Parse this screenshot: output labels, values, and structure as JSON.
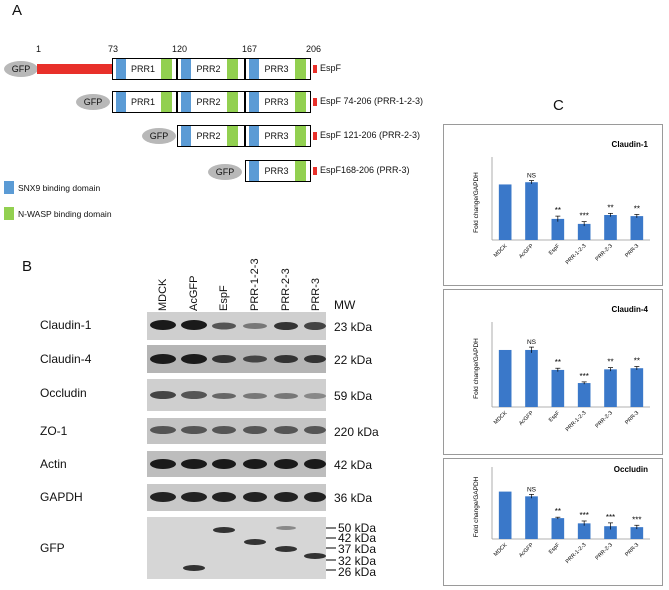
{
  "panels": {
    "a": "A",
    "b": "B",
    "c": "C"
  },
  "panel_a": {
    "positions": [
      "1",
      "73",
      "120",
      "167",
      "206"
    ],
    "gfp_label": "GFP",
    "prr_labels": [
      "PRR1",
      "PRR2",
      "PRR3"
    ],
    "constructs": [
      "EspF",
      "EspF 74-206 (PRR-1-2-3)",
      "EspF 121-206 (PRR-2-3)",
      "EspF168-206 (PRR-3)"
    ],
    "legend": [
      {
        "label": "SNX9 binding domain",
        "color": "#5b9bd5"
      },
      {
        "label": "N-WASP binding domain",
        "color": "#92d050"
      }
    ],
    "colors": {
      "linker": "#e8302a",
      "gfp": "#b8b8b8"
    }
  },
  "panel_b": {
    "lanes": [
      "MDCK",
      "AcGFP",
      "EspF",
      "PRR-1-2-3",
      "PRR-2-3",
      "PRR-3"
    ],
    "mw_header": "MW",
    "blots": [
      {
        "name": "Claudin-1",
        "mw": "23 kDa"
      },
      {
        "name": "Claudin-4",
        "mw": "22 kDa"
      },
      {
        "name": "Occludin",
        "mw": "59 kDa"
      },
      {
        "name": "ZO-1",
        "mw": "220 kDa"
      },
      {
        "name": "Actin",
        "mw": "42 kDa"
      },
      {
        "name": "GAPDH",
        "mw": "36 kDa"
      },
      {
        "name": "GFP",
        "mw": ""
      }
    ],
    "gfp_markers": [
      "50 kDa",
      "42 kDa",
      "37 kDa",
      "32 kDa",
      "26 kDa"
    ]
  },
  "chart_data": [
    {
      "type": "bar",
      "title": "Claudin-1",
      "ylabel": "Fold change/GAPDH",
      "categories": [
        "MDCK",
        "AcGFP",
        "EspF",
        "PRR-1-2-3",
        "PRR-2-3",
        "PRR-3"
      ],
      "values": [
        1.0,
        1.04,
        0.38,
        0.29,
        0.45,
        0.43
      ],
      "errors": [
        0.0,
        0.03,
        0.05,
        0.04,
        0.03,
        0.03
      ],
      "significance": [
        "",
        "NS",
        "**",
        "***",
        "**",
        "**"
      ],
      "ylim": [
        0,
        1.35
      ],
      "color": "#3a78c9"
    },
    {
      "type": "bar",
      "title": "Claudin-4",
      "ylabel": "Fold change/GAPDH",
      "categories": [
        "MDCK",
        "AcGFP",
        "EspF",
        "PRR-1-2-3",
        "PRR-2-3",
        "PRR-3"
      ],
      "values": [
        1.0,
        1.0,
        0.65,
        0.42,
        0.66,
        0.68
      ],
      "errors": [
        0.0,
        0.05,
        0.03,
        0.02,
        0.03,
        0.03
      ],
      "significance": [
        "",
        "NS",
        "**",
        "***",
        "**",
        "**"
      ],
      "ylim": [
        0,
        1.35
      ],
      "color": "#3a78c9"
    },
    {
      "type": "bar",
      "title": "Occludin",
      "ylabel": "Fold change/GAPDH",
      "categories": [
        "MDCK",
        "AcGFP",
        "EspF",
        "PRR-1-2-3",
        "PRR-2-3",
        "PRR-3"
      ],
      "values": [
        1.0,
        0.9,
        0.44,
        0.33,
        0.27,
        0.25
      ],
      "errors": [
        0.0,
        0.04,
        0.02,
        0.05,
        0.07,
        0.04
      ],
      "significance": [
        "",
        "NS",
        "**",
        "***",
        "***",
        "***"
      ],
      "ylim": [
        0,
        1.35
      ],
      "color": "#3a78c9"
    }
  ]
}
